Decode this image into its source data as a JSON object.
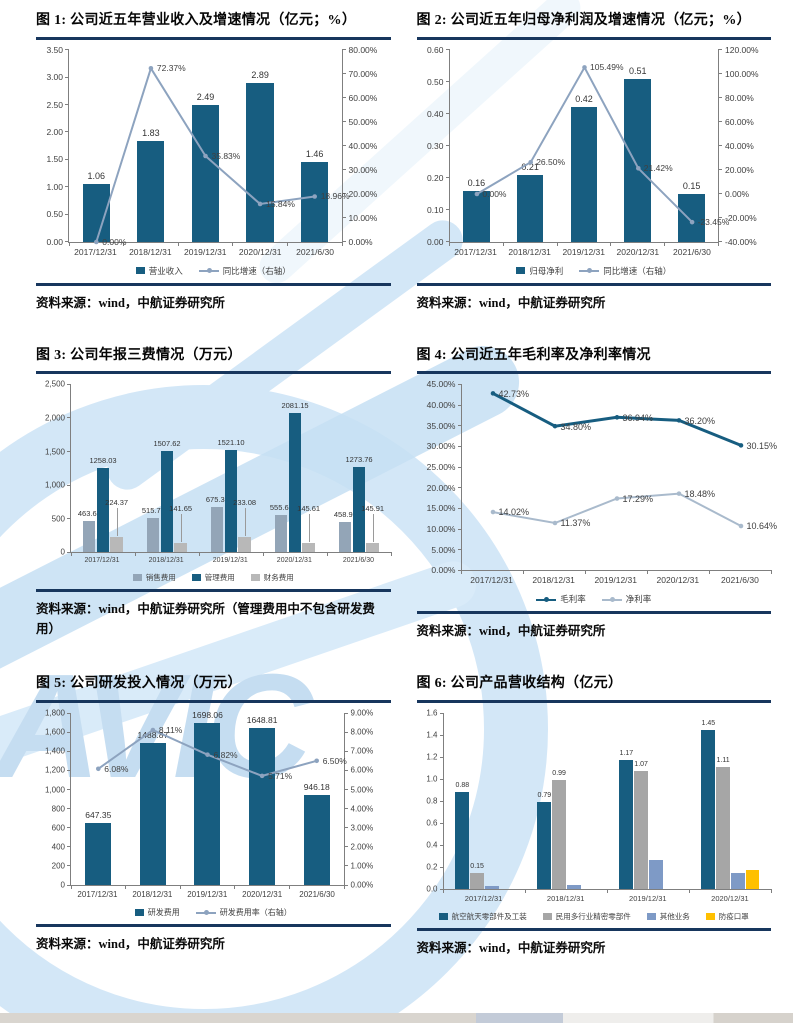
{
  "watermark": {
    "text": "AVIC"
  },
  "chart_data": [
    {
      "id": "fig1",
      "type": "bar+line",
      "title": "图 1: 公司近五年营业收入及增速情况（亿元；%）",
      "source": "资料来源：wind，中航证券研究所",
      "categories": [
        "2017/12/31",
        "2018/12/31",
        "2019/12/31",
        "2020/12/31",
        "2021/6/30"
      ],
      "left_axis": {
        "min": 0,
        "max": 3.5,
        "ticks": [
          "0.00",
          "0.50",
          "1.00",
          "1.50",
          "2.00",
          "2.50",
          "3.00",
          "3.50"
        ]
      },
      "right_axis": {
        "min": 0,
        "max": 80,
        "ticks": [
          "0.00%",
          "10.00%",
          "20.00%",
          "30.00%",
          "40.00%",
          "50.00%",
          "60.00%",
          "70.00%",
          "80.00%"
        ]
      },
      "bar_series": [
        {
          "name": "营业收入",
          "color": "#175d80",
          "values": [
            1.06,
            1.83,
            2.49,
            2.89,
            1.46
          ],
          "labels": [
            "1.06",
            "1.83",
            "2.49",
            "2.89",
            "1.46"
          ]
        }
      ],
      "line_series": [
        {
          "name": "同比增速（右轴）",
          "color": "#8da3bf",
          "axis": "right",
          "values": [
            0.0,
            72.37,
            35.83,
            15.84,
            18.96
          ],
          "labels": [
            "0.00%",
            "72.37%",
            "35.83%",
            "15.84%",
            "18.96%"
          ]
        }
      ]
    },
    {
      "id": "fig2",
      "type": "bar+line",
      "title": "图 2: 公司近五年归母净利润及增速情况（亿元；%）",
      "source": "资料来源：wind，中航证券研究所",
      "categories": [
        "2017/12/31",
        "2018/12/31",
        "2019/12/31",
        "2020/12/31",
        "2021/6/30"
      ],
      "left_axis": {
        "min": 0,
        "max": 0.6,
        "ticks": [
          "0.00",
          "0.10",
          "0.20",
          "0.30",
          "0.40",
          "0.50",
          "0.60"
        ]
      },
      "right_axis": {
        "min": -40,
        "max": 120,
        "ticks": [
          "-40.00%",
          "-20.00%",
          "0.00%",
          "20.00%",
          "40.00%",
          "60.00%",
          "80.00%",
          "100.00%",
          "120.00%"
        ]
      },
      "bar_series": [
        {
          "name": "归母净利",
          "color": "#175d80",
          "values": [
            0.16,
            0.21,
            0.42,
            0.51,
            0.15
          ],
          "labels": [
            "0.16",
            "0.21",
            "0.42",
            "0.51",
            "0.15"
          ]
        }
      ],
      "line_series": [
        {
          "name": "同比增速（右轴）",
          "color": "#8da3bf",
          "axis": "right",
          "values": [
            0.0,
            26.5,
            105.49,
            21.42,
            -23.45
          ],
          "labels": [
            "0.00%",
            "26.50%",
            "105.49%",
            "21.42%",
            "-23.45%"
          ]
        }
      ]
    },
    {
      "id": "fig3",
      "type": "bar",
      "title": "图 3: 公司年报三费情况（万元）",
      "source": "资料来源：wind，中航证券研究所（管理费用中不包含研发费用）",
      "categories": [
        "2017/12/31",
        "2018/12/31",
        "2019/12/31",
        "2020/12/31",
        "2021/6/30"
      ],
      "left_axis": {
        "min": 0,
        "max": 2500,
        "ticks": [
          "0",
          "500",
          "1,000",
          "1,500",
          "2,000",
          "2,500"
        ]
      },
      "right_axis": null,
      "bar_series": [
        {
          "name": "销售费用",
          "color": "#93a5b7",
          "values": [
            463.67,
            515.71,
            675.36,
            555.65,
            458.96
          ],
          "labels": [
            "463.67",
            "515.71",
            "675.36",
            "555.65",
            "458.96"
          ]
        },
        {
          "name": "管理费用",
          "color": "#175d80",
          "values": [
            1258.03,
            1507.62,
            1521.1,
            2081.15,
            1273.76
          ],
          "labels": [
            "1258.03",
            "1507.62",
            "1521.10",
            "2081.15",
            "1273.76"
          ]
        },
        {
          "name": "财务费用",
          "color": "#b8b8b8",
          "values": [
            224.37,
            141.65,
            233.08,
            145.61,
            145.91
          ],
          "labels": [
            "224.37",
            "141.65",
            "233.08",
            "145.61",
            "145.91"
          ]
        }
      ],
      "line_series": []
    },
    {
      "id": "fig4",
      "type": "line",
      "title": "图 4: 公司近五年毛利率及净利率情况",
      "source": "资料来源：wind，中航证券研究所",
      "categories": [
        "2017/12/31",
        "2018/12/31",
        "2019/12/31",
        "2020/12/31",
        "2021/6/30"
      ],
      "left_axis": {
        "min": 0,
        "max": 45,
        "ticks": [
          "0.00%",
          "5.00%",
          "10.00%",
          "15.00%",
          "20.00%",
          "25.00%",
          "30.00%",
          "35.00%",
          "40.00%",
          "45.00%"
        ]
      },
      "right_axis": null,
      "bar_series": [],
      "line_series": [
        {
          "name": "毛利率",
          "color": "#175d80",
          "axis": "left",
          "values": [
            42.73,
            34.8,
            36.94,
            36.2,
            30.15
          ],
          "labels": [
            "42.73%",
            "34.80%",
            "36.94%",
            "36.20%",
            "30.15%"
          ]
        },
        {
          "name": "净利率",
          "color": "#a9bacc",
          "axis": "left",
          "values": [
            14.02,
            11.37,
            17.29,
            18.48,
            10.64
          ],
          "labels": [
            "14.02%",
            "11.37%",
            "17.29%",
            "18.48%",
            "10.64%"
          ]
        }
      ]
    },
    {
      "id": "fig5",
      "type": "bar+line",
      "title": "图 5: 公司研发投入情况（万元）",
      "source": "资料来源：wind，中航证券研究所",
      "categories": [
        "2017/12/31",
        "2018/12/31",
        "2019/12/31",
        "2020/12/31",
        "2021/6/30"
      ],
      "left_axis": {
        "min": 0,
        "max": 1800,
        "ticks": [
          "0",
          "200",
          "400",
          "600",
          "800",
          "1,000",
          "1,200",
          "1,400",
          "1,600",
          "1,800"
        ]
      },
      "right_axis": {
        "min": 0,
        "max": 9,
        "ticks": [
          "0.00%",
          "1.00%",
          "2.00%",
          "3.00%",
          "4.00%",
          "5.00%",
          "6.00%",
          "7.00%",
          "8.00%",
          "9.00%"
        ]
      },
      "bar_series": [
        {
          "name": "研发费用",
          "color": "#175d80",
          "values": [
            647.35,
            1488.87,
            1698.06,
            1648.81,
            946.18
          ],
          "labels": [
            "647.35",
            "1488.87",
            "1698.06",
            "1648.81",
            "946.18"
          ]
        }
      ],
      "line_series": [
        {
          "name": "研发费用率（右轴）",
          "color": "#8da3bf",
          "axis": "right",
          "values": [
            6.08,
            8.11,
            6.82,
            5.71,
            6.5
          ],
          "labels": [
            "6.08%",
            "8.11%",
            "6.82%",
            "5.71%",
            "6.50%"
          ]
        }
      ]
    },
    {
      "id": "fig6",
      "type": "bar",
      "title": "图 6: 公司产品营收结构（亿元）",
      "source": "资料来源：wind，中航证券研究所",
      "categories": [
        "2017/12/31",
        "2018/12/31",
        "2019/12/31",
        "2020/12/31"
      ],
      "left_axis": {
        "min": 0,
        "max": 1.6,
        "ticks": [
          "0.0",
          "0.2",
          "0.4",
          "0.6",
          "0.8",
          "1.0",
          "1.2",
          "1.4",
          "1.6"
        ]
      },
      "right_axis": null,
      "bar_series": [
        {
          "name": "航空航天零部件及工装",
          "color": "#175d80",
          "values": [
            0.88,
            0.79,
            1.17,
            1.45
          ],
          "labels": [
            "0.88",
            "0.79",
            "1.17",
            "1.45"
          ]
        },
        {
          "name": "民用多行业精密零部件",
          "color": "#a6a6a6",
          "values": [
            0.15,
            0.99,
            1.07,
            1.11
          ],
          "labels": [
            "0.15",
            "0.99",
            "1.07",
            "1.11"
          ]
        },
        {
          "name": "其他业务",
          "color": "#7e9ac6",
          "values": [
            0.03,
            0.04,
            0.26,
            0.15
          ],
          "labels": [
            "",
            "",
            "",
            ""
          ]
        },
        {
          "name": "防疫口罩",
          "color": "#ffc000",
          "values": [
            null,
            null,
            null,
            0.17
          ],
          "labels": [
            "",
            "",
            "",
            ""
          ]
        }
      ],
      "line_series": []
    }
  ]
}
